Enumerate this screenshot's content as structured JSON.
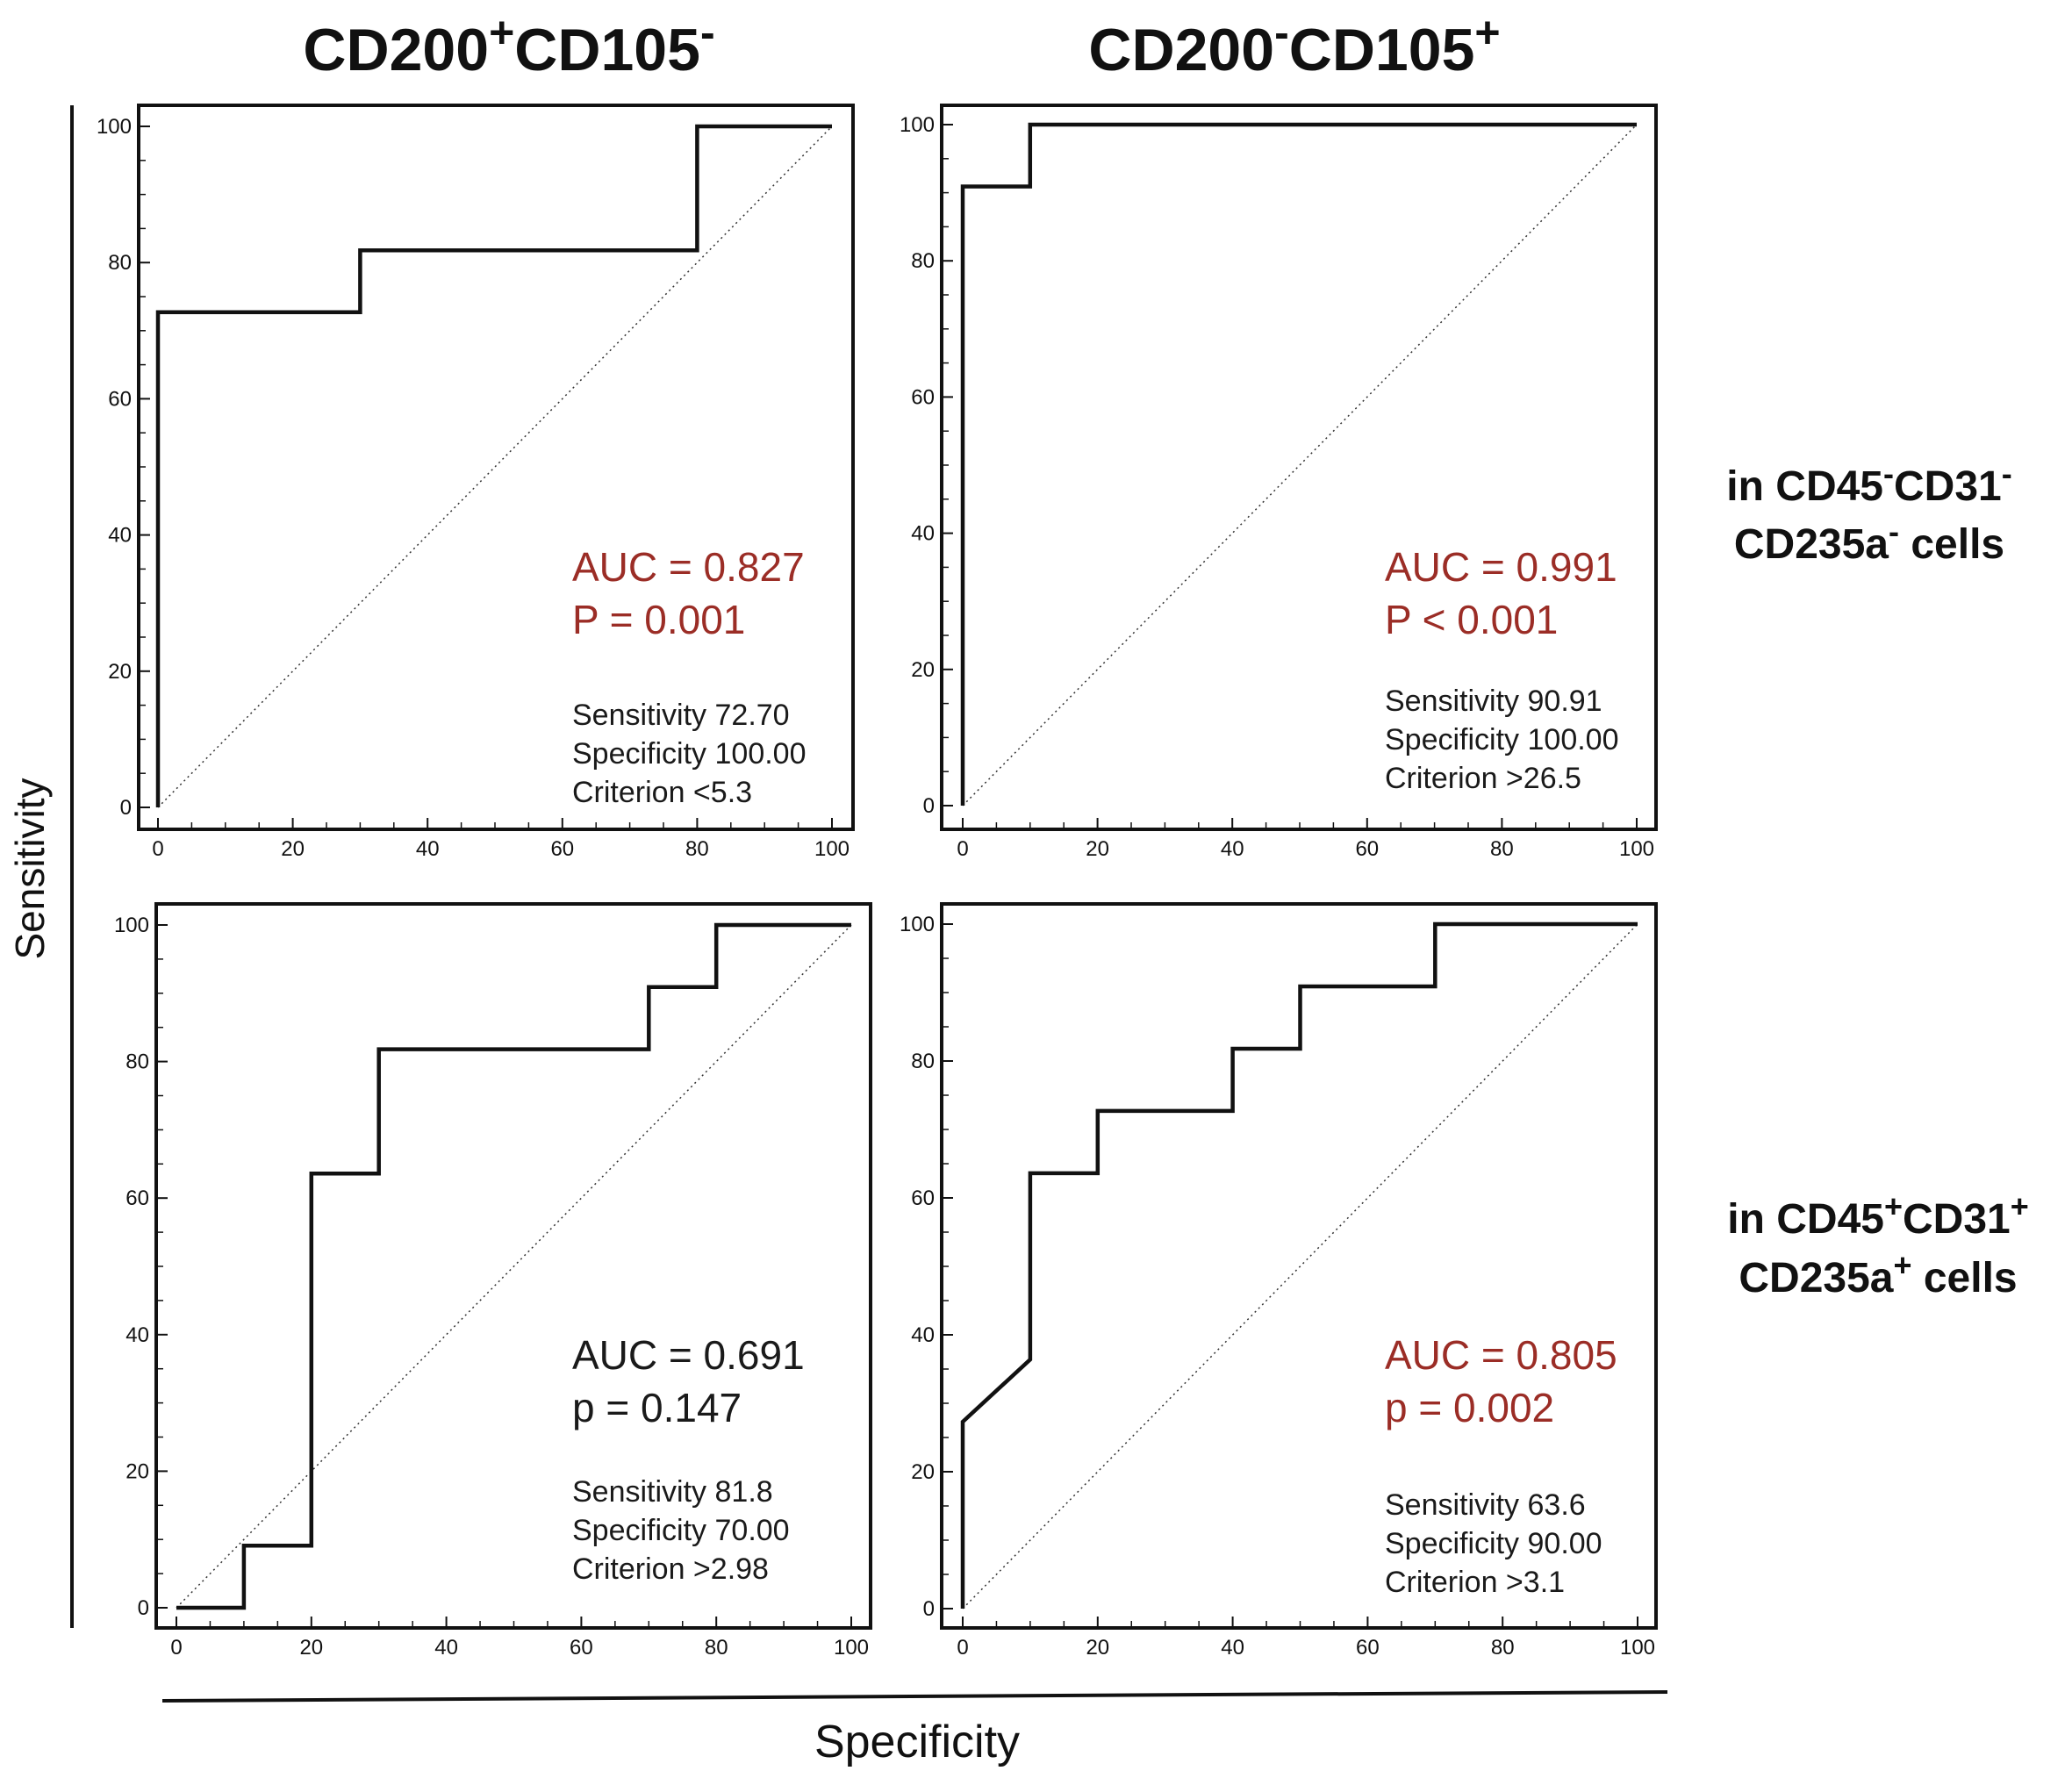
{
  "figure": {
    "col_titles": [
      {
        "base1": "CD200",
        "sup1": "+",
        "base2": "CD105",
        "sup2": "-"
      },
      {
        "base1": "CD200",
        "sup1": "-",
        "base2": "CD105",
        "sup2": "+"
      }
    ],
    "row_labels": [
      {
        "line1": [
          "in CD45",
          "-",
          "CD31",
          "-"
        ],
        "line2": [
          "CD235a",
          "-",
          " cells"
        ]
      },
      {
        "line1": [
          "in  CD45",
          "+",
          "CD31",
          "+"
        ],
        "line2": [
          "CD235a",
          "+",
          " cells"
        ]
      }
    ],
    "xlabel": "Specificity",
    "ylabel": "Sensitivity"
  },
  "colors": {
    "significant": "#9b2d26",
    "not_significant": "#1a1a1a",
    "curve": "#111111"
  },
  "chart_data": [
    {
      "type": "line",
      "panel": "top-left",
      "xlim": [
        0,
        100
      ],
      "ylim": [
        0,
        100
      ],
      "xticks": [
        0,
        20,
        40,
        60,
        80,
        100
      ],
      "yticks": [
        0,
        20,
        40,
        60,
        80,
        100
      ],
      "roc": {
        "x": [
          0,
          0,
          30,
          30,
          80,
          80,
          100
        ],
        "y": [
          0,
          72.7,
          72.7,
          81.8,
          81.8,
          100,
          100
        ]
      },
      "reference_diagonal": true,
      "auc": "AUC = 0.827",
      "p": "P = 0.001",
      "significant": true,
      "stats": [
        "Sensitivity 72.70",
        "Specificity 100.00",
        "Criterion <5.3"
      ]
    },
    {
      "type": "line",
      "panel": "top-right",
      "xlim": [
        0,
        100
      ],
      "ylim": [
        0,
        100
      ],
      "xticks": [
        0,
        20,
        40,
        60,
        80,
        100
      ],
      "yticks": [
        0,
        20,
        40,
        60,
        80,
        100
      ],
      "roc": {
        "x": [
          0,
          0,
          10,
          10,
          100
        ],
        "y": [
          0,
          90.91,
          90.91,
          100,
          100
        ]
      },
      "reference_diagonal": true,
      "auc": "AUC = 0.991",
      "p": "P < 0.001",
      "significant": true,
      "stats": [
        "Sensitivity 90.91",
        "Specificity 100.00",
        "Criterion >26.5"
      ]
    },
    {
      "type": "line",
      "panel": "bottom-left",
      "xlim": [
        0,
        100
      ],
      "ylim": [
        0,
        100
      ],
      "xticks": [
        0,
        20,
        40,
        60,
        80,
        100
      ],
      "yticks": [
        0,
        20,
        40,
        60,
        80,
        100
      ],
      "roc": {
        "x": [
          0,
          10,
          10,
          20,
          20,
          30,
          30,
          70,
          70,
          80,
          80,
          100
        ],
        "y": [
          0,
          0,
          9.1,
          9.1,
          63.6,
          63.6,
          81.8,
          81.8,
          90.9,
          90.9,
          100,
          100
        ]
      },
      "reference_diagonal": true,
      "auc": "AUC = 0.691",
      "p": "p = 0.147",
      "significant": false,
      "stats": [
        "Sensitivity 81.8",
        "Specificity 70.00",
        "Criterion >2.98"
      ]
    },
    {
      "type": "line",
      "panel": "bottom-right",
      "xlim": [
        0,
        100
      ],
      "ylim": [
        0,
        100
      ],
      "xticks": [
        0,
        20,
        40,
        60,
        80,
        100
      ],
      "yticks": [
        0,
        20,
        40,
        60,
        80,
        100
      ],
      "roc": {
        "x": [
          0,
          0,
          10,
          10,
          20,
          20,
          40,
          40,
          50,
          50,
          70,
          70,
          100
        ],
        "y": [
          0,
          27.3,
          36.4,
          63.6,
          63.6,
          72.7,
          72.7,
          81.8,
          81.8,
          90.9,
          90.9,
          100,
          100
        ]
      },
      "reference_diagonal": true,
      "auc": "AUC = 0.805",
      "p": "p = 0.002",
      "significant": true,
      "stats": [
        "Sensitivity 63.6",
        "Specificity 90.00",
        "Criterion >3.1"
      ]
    }
  ]
}
